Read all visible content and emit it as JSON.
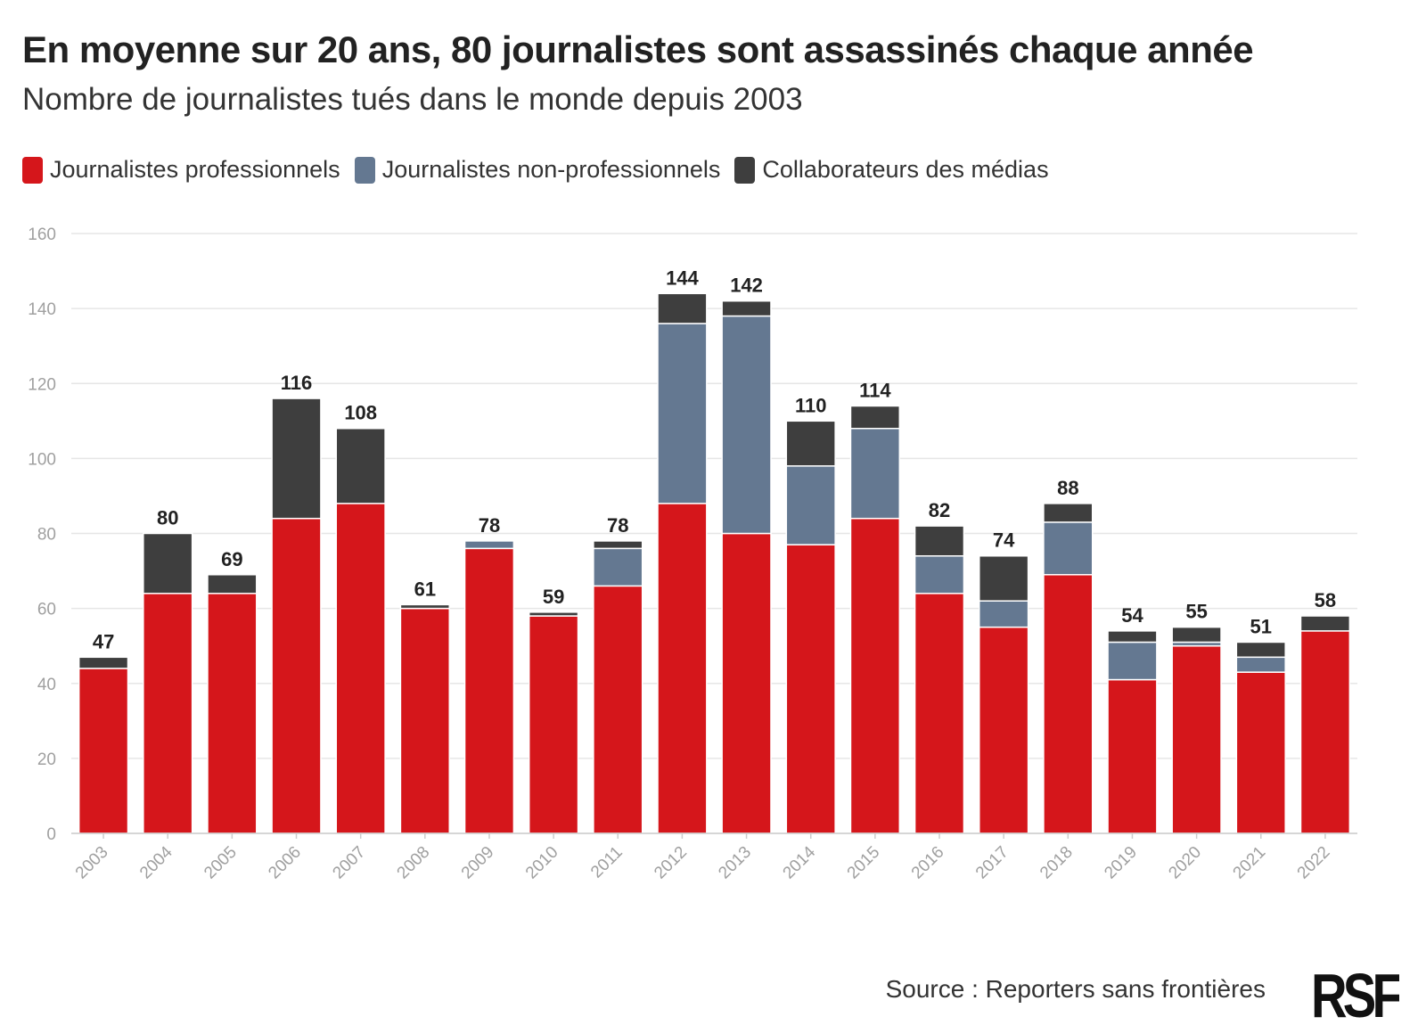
{
  "title": "En moyenne sur 20 ans, 80 journalistes sont assassinés chaque année",
  "subtitle": "Nombre de journalistes tués dans le monde depuis 2003",
  "source": "Source : Reporters sans frontières",
  "logo_text": "RSF",
  "colors": {
    "professionnels": "#d5161b",
    "non_professionnels": "#647891",
    "collaborateurs": "#3e3e3e",
    "grid": "#e6e6e6",
    "axis_text": "#a0a0a0"
  },
  "chart_data": {
    "type": "bar",
    "stacked": true,
    "title": "En moyenne sur 20 ans, 80 journalistes sont assassinés chaque année",
    "subtitle": "Nombre de journalistes tués dans le monde depuis 2003",
    "legend_position": "top-left",
    "grid": true,
    "ylim": [
      0,
      160
    ],
    "yticks": [
      "0",
      "20",
      "40",
      "60",
      "80",
      "100",
      "120",
      "140",
      "160"
    ],
    "categories": [
      "2003",
      "2004",
      "2005",
      "2006",
      "2007",
      "2008",
      "2009",
      "2010",
      "2011",
      "2012",
      "2013",
      "2014",
      "2015",
      "2016",
      "2017",
      "2018",
      "2019",
      "2020",
      "2021",
      "2022"
    ],
    "series": [
      {
        "name": "Journalistes professionnels",
        "values": [
          44,
          64,
          64,
          84,
          88,
          60,
          76,
          58,
          66,
          88,
          80,
          77,
          84,
          64,
          55,
          69,
          41,
          50,
          43,
          54
        ]
      },
      {
        "name": "Journalistes non-professionnels",
        "values": [
          0,
          0,
          0,
          0,
          0,
          0,
          2,
          0,
          10,
          48,
          58,
          21,
          24,
          10,
          7,
          14,
          10,
          1,
          4,
          0
        ]
      },
      {
        "name": "Collaborateurs des médias",
        "values": [
          3,
          16,
          5,
          32,
          20,
          1,
          0,
          1,
          2,
          8,
          4,
          12,
          6,
          8,
          12,
          5,
          3,
          4,
          4,
          4
        ]
      }
    ],
    "totals": [
      "47",
      "80",
      "69",
      "116",
      "108",
      "61",
      "78",
      "59",
      "78",
      "144",
      "142",
      "110",
      "114",
      "82",
      "74",
      "88",
      "54",
      "55",
      "51",
      "58"
    ]
  }
}
